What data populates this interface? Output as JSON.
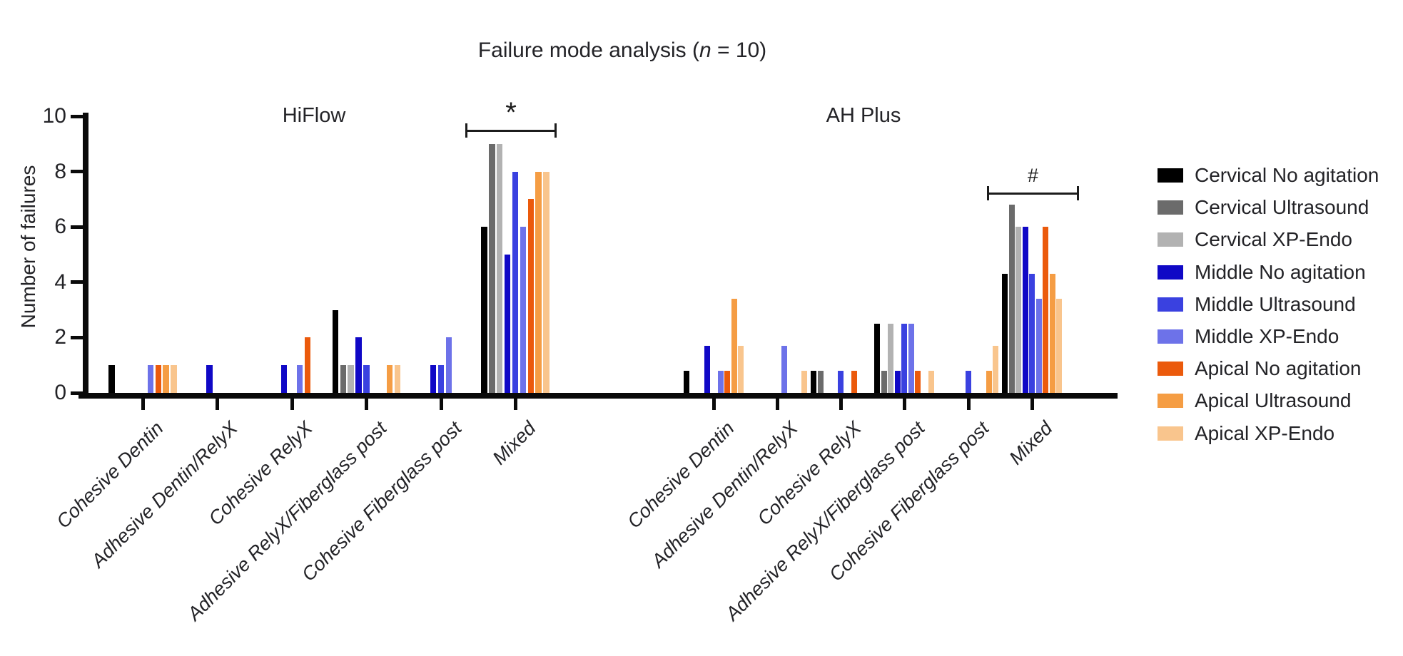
{
  "chart_data": {
    "type": "bar",
    "title": "Failure mode analysis (n = 10)",
    "title_parts": {
      "prefix": "Failure mode analysis (",
      "n": "n",
      "suffix": " = 10)"
    },
    "ylabel": "Number of failures",
    "ylim": [
      0,
      10
    ],
    "yticks": [
      0,
      2,
      4,
      6,
      8,
      10
    ],
    "grid": false,
    "legend_position": "right",
    "categories": [
      "Cohesive Dentin",
      "Adhesive Dentin/RelyX",
      "Cohesive RelyX",
      "Adhesive RelyX/Fiberglass post",
      "Cohesive Fiberglass post",
      "Mixed"
    ],
    "series": [
      {
        "name": "Cervical No agitation",
        "color": "#000000"
      },
      {
        "name": "Cervical Ultrasound",
        "color": "#6b6b6b"
      },
      {
        "name": "Cervical XP-Endo",
        "color": "#b2b2b2"
      },
      {
        "name": "Middle No agitation",
        "color": "#1008c6"
      },
      {
        "name": "Middle Ultrasound",
        "color": "#3a41e0"
      },
      {
        "name": "Middle XP-Endo",
        "color": "#6d72e9"
      },
      {
        "name": "Apical No agitation",
        "color": "#eb5a0c"
      },
      {
        "name": "Apical Ultrasound",
        "color": "#f59d44"
      },
      {
        "name": "Apical XP-Endo",
        "color": "#f9c58d"
      }
    ],
    "panels": [
      {
        "name": "HiFlow",
        "significance_label": "*",
        "values_by_category": [
          [
            1,
            0,
            0,
            0,
            0,
            1,
            1,
            1,
            1
          ],
          [
            0,
            0,
            0,
            1,
            0,
            0,
            0,
            0,
            0
          ],
          [
            0,
            0,
            0,
            1,
            0,
            1,
            2,
            0,
            0
          ],
          [
            3,
            1,
            1,
            2,
            1,
            0,
            0,
            1,
            1
          ],
          [
            0,
            0,
            0,
            1,
            1,
            2,
            0,
            0,
            0
          ],
          [
            6,
            9,
            9,
            5,
            8,
            6,
            7,
            8,
            8
          ]
        ]
      },
      {
        "name": "AH Plus",
        "significance_label": "#",
        "values_by_category": [
          [
            0.8,
            0,
            0,
            1.7,
            0,
            0.8,
            0.8,
            3.4,
            1.7
          ],
          [
            0,
            0,
            0,
            0,
            0,
            1.7,
            0,
            0,
            0.8
          ],
          [
            0.8,
            0.8,
            0,
            0,
            0.8,
            0,
            0.8,
            0,
            0
          ],
          [
            2.5,
            0.8,
            2.5,
            0.8,
            2.5,
            2.5,
            0.8,
            0,
            0.8
          ],
          [
            0,
            0,
            0,
            0,
            0.8,
            0,
            0,
            0.8,
            1.7
          ],
          [
            4.3,
            6.8,
            6,
            6,
            4.3,
            3.4,
            6,
            4.3,
            3.4
          ]
        ]
      }
    ]
  }
}
